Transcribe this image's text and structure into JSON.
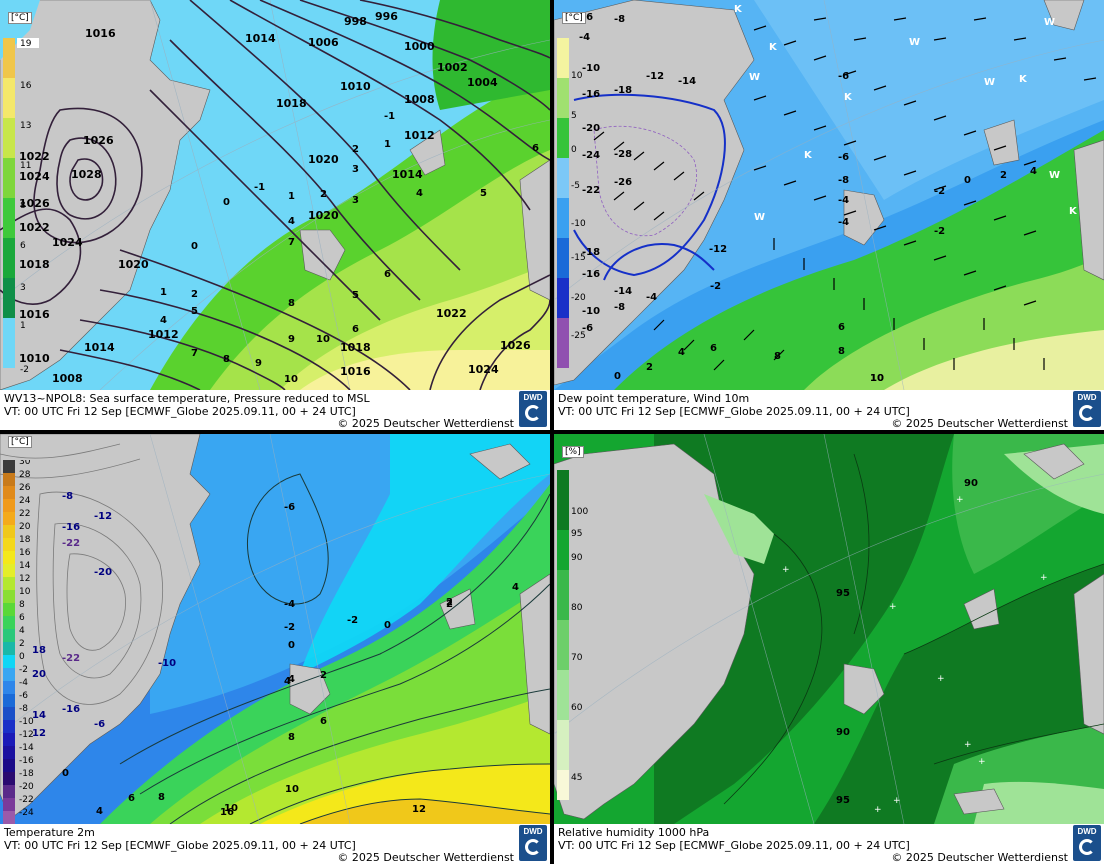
{
  "panels": {
    "tl": {
      "unit": "[°C]",
      "title": "WV13~NPOL8: Sea surface temperature,  Pressure reduced to MSL",
      "valid": "VT: 00 UTC Fri  12 Sep [ECMWF_Globe 2025.09.11, 00 + 24 UTC]",
      "copyright": "© 2025 Deutscher Wetterdienst",
      "logo": "DWD",
      "scale_labels": [
        "19",
        "16",
        "13",
        "11",
        "8",
        "6",
        "3",
        "1",
        "-2"
      ],
      "isobar_labels": [
        "1016",
        "1014",
        "1006",
        "998",
        "996",
        "1000",
        "1002",
        "1004",
        "1010",
        "1018",
        "1008",
        "1020",
        "1012",
        "1014",
        "1026",
        "1028",
        "1022",
        "1024",
        "1026",
        "1022",
        "1024",
        "1018",
        "1020",
        "1016",
        "1012",
        "1010",
        "1008",
        "1014",
        "1018",
        "1016",
        "1024",
        "1026",
        "1022",
        "1020"
      ],
      "sst_labels": [
        "-1",
        "0",
        "1",
        "2",
        "3",
        "4",
        "5",
        "6",
        "7",
        "8",
        "9",
        "10",
        "-1",
        "0",
        "1",
        "2",
        "3",
        "4",
        "5",
        "6",
        "1",
        "2",
        "4",
        "5",
        "6",
        "7",
        "8",
        "9",
        "10"
      ]
    },
    "tr": {
      "unit": "[°C]",
      "title": "Dew point temperature, Wind 10m",
      "valid": "VT: 00 UTC Fri  12 Sep [ECMWF_Globe 2025.09.11,  00 + 24 UTC]",
      "copyright": "© 2025 Deutscher Wetterdienst",
      "logo": "DWD",
      "scale_labels": [
        "10",
        "5",
        "0",
        "-5",
        "-10",
        "-15",
        "-20",
        "-25"
      ],
      "value_labels": [
        "-6",
        "-8",
        "-4",
        "-10",
        "-12",
        "-14",
        "-16",
        "-18",
        "-20",
        "-24",
        "-28",
        "-26",
        "-22",
        "-12",
        "-18",
        "-16",
        "-14",
        "-10",
        "-8",
        "-6",
        "-4",
        "-2",
        "0",
        "2",
        "4",
        "6",
        "8",
        "10",
        "-6",
        "-8",
        "-2",
        "-4",
        "0",
        "2",
        "4",
        "6",
        "8",
        "10",
        "-2",
        "-4",
        "-6"
      ],
      "symbols": [
        "K",
        "W"
      ]
    },
    "bl": {
      "unit": "[°C]",
      "title": "Temperature 2m",
      "valid": "VT: 00 UTC Fri  12 Sep [ECMWF_Globe 2025.09.11, 00 + 24 UTC]",
      "copyright": "© 2025 Deutscher Wetterdienst",
      "logo": "DWD",
      "scale_labels": [
        "30",
        "28",
        "26",
        "24",
        "22",
        "20",
        "18",
        "16",
        "14",
        "12",
        "10",
        "8",
        "6",
        "4",
        "2",
        "0",
        "-2",
        "-4",
        "-6",
        "-8",
        "-10",
        "-12",
        "-14",
        "-16",
        "-18",
        "-20",
        "-22",
        "-24"
      ],
      "value_labels": [
        "-8",
        "-12",
        "-16",
        "-22",
        "-20",
        "-22",
        "-16",
        "-10",
        "-6",
        "-4",
        "-2",
        "-2",
        "0",
        "2",
        "4",
        "0",
        "2",
        "4",
        "6",
        "8",
        "10",
        "12",
        "16",
        "18",
        "20",
        "14",
        "12",
        "6",
        "4",
        "8",
        "10",
        "0",
        "-6",
        "4",
        "2"
      ]
    },
    "br": {
      "unit": "[%]",
      "title": "Relative humidity 1000 hPa",
      "valid": "VT: 00 UTC Fri  12 Sep [ECMWF_Globe 2025.09.11, 00 + 24 UTC]",
      "copyright": "© 2025 Deutscher Wetterdienst",
      "logo": "DWD",
      "scale_labels": [
        "100",
        "95",
        "90",
        "80",
        "70",
        "60",
        "45"
      ],
      "value_labels": [
        "90",
        "95",
        "90",
        "95"
      ]
    }
  },
  "colors": {
    "land": "#c8c8c8",
    "sst_cold": "#6fd7f7",
    "sst_mid": "#3ec93a",
    "sst_warm": "#f7f29a",
    "dew_blue": "#3aa0f0",
    "dew_green": "#36c43a",
    "t2m_blue": "#2e86ea",
    "t2m_cyan": "#10d6f5",
    "t2m_green": "#58d832",
    "t2m_yellow": "#f4e81a",
    "rh_dark": "#0f7a22",
    "rh_mid": "#14a630",
    "rh_light": "#9fe397"
  }
}
